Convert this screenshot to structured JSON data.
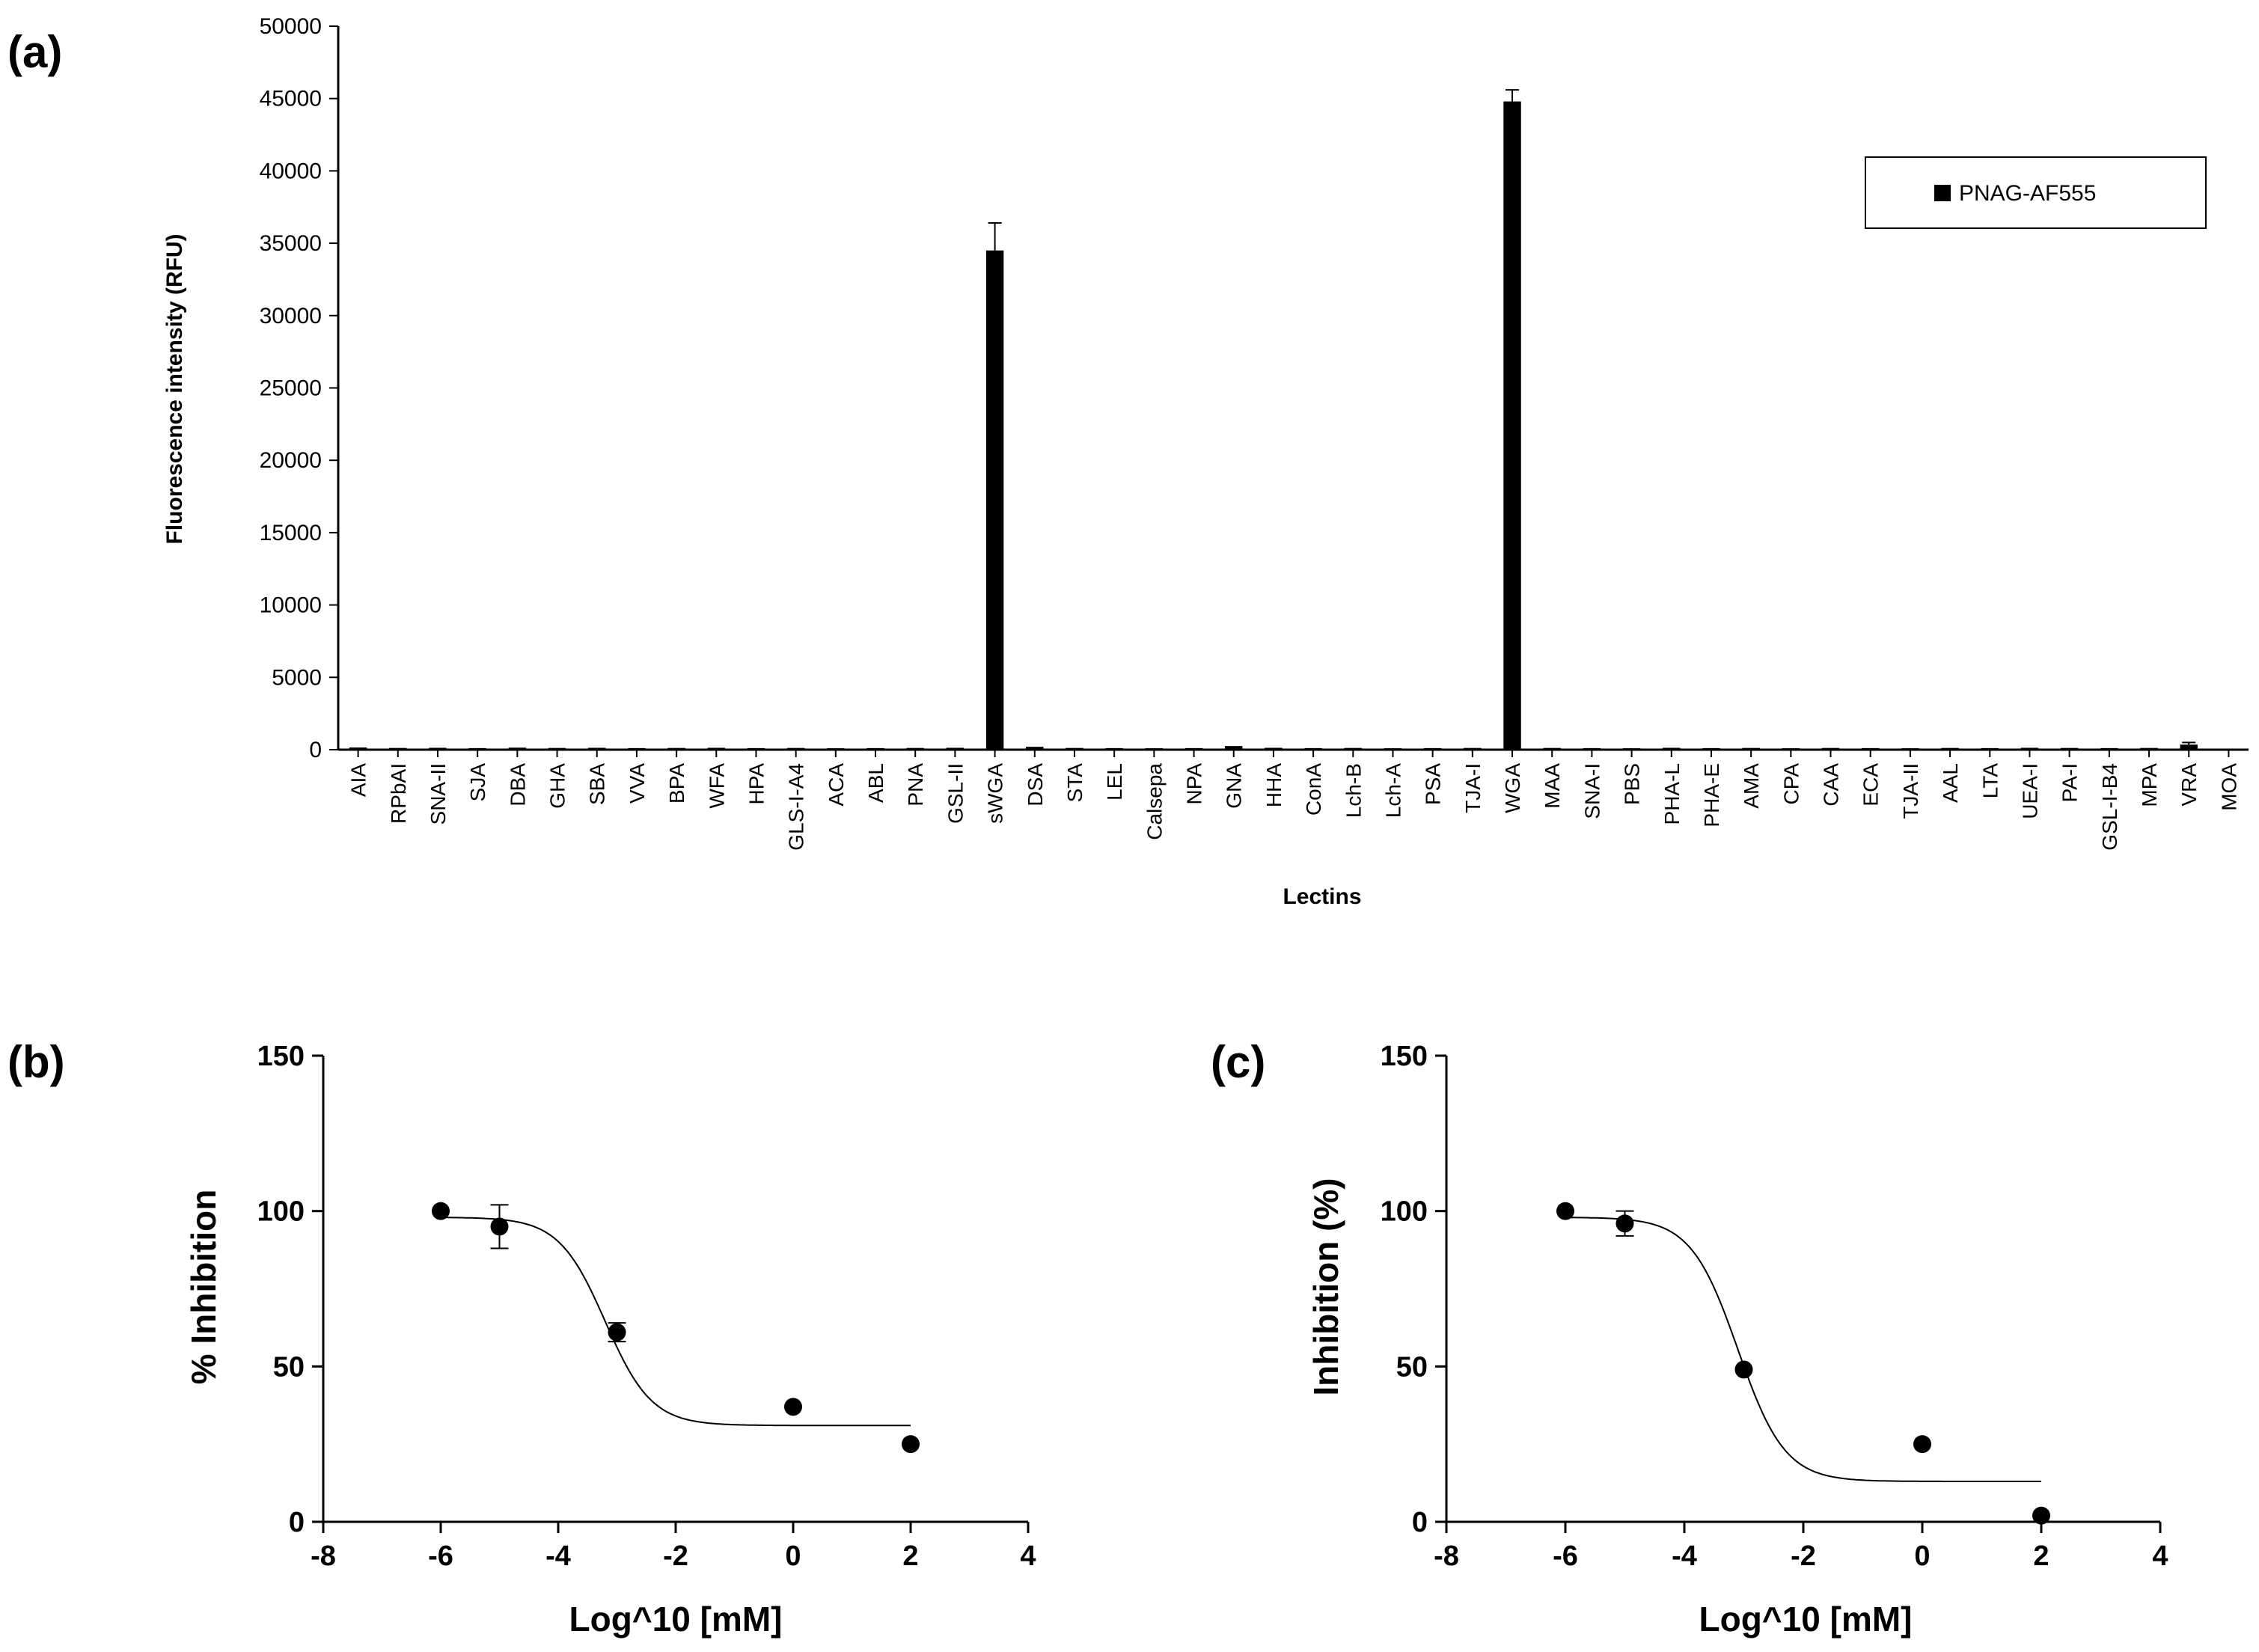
{
  "chart_data": [
    {
      "panel": "(a)",
      "type": "bar",
      "title": "",
      "xlabel": "Lectins",
      "ylabel": "Fluorescence intensity (RFU)",
      "ylim": [
        0,
        50000
      ],
      "yticks": [
        0,
        5000,
        10000,
        15000,
        20000,
        25000,
        30000,
        35000,
        40000,
        45000,
        50000
      ],
      "legend": {
        "position": "top-right",
        "entries": [
          "PNAG-AF555"
        ]
      },
      "categories": [
        "AIA",
        "RPbAI",
        "SNA-II",
        "SJA",
        "DBA",
        "GHA",
        "SBA",
        "VVA",
        "BPA",
        "WFA",
        "HPA",
        "GLS-I-A4",
        "ACA",
        "ABL",
        "PNA",
        "GSL-II",
        "sWGA",
        "DSA",
        "STA",
        "LEL",
        "Calsepa",
        "NPA",
        "GNA",
        "HHA",
        "ConA",
        "Lch-B",
        "Lch-A",
        "PSA",
        "TJA-I",
        "WGA",
        "MAA",
        "SNA-I",
        "PBS",
        "PHA-L",
        "PHA-E",
        "AMA",
        "CPA",
        "CAA",
        "ECA",
        "TJA-II",
        "AAL",
        "LTA",
        "UEA-I",
        "PA-I",
        "GSL-I-B4",
        "MPA",
        "VRA",
        "MOA"
      ],
      "series": [
        {
          "name": "PNAG-AF555",
          "color": "#000000",
          "values": [
            150,
            120,
            130,
            110,
            140,
            120,
            130,
            110,
            120,
            130,
            110,
            120,
            100,
            110,
            120,
            130,
            34500,
            200,
            120,
            110,
            100,
            110,
            250,
            130,
            110,
            120,
            100,
            110,
            120,
            44800,
            120,
            110,
            100,
            130,
            110,
            120,
            100,
            120,
            110,
            100,
            120,
            110,
            130,
            120,
            110,
            120,
            350,
            50
          ],
          "errors": [
            0,
            0,
            0,
            0,
            0,
            0,
            0,
            0,
            0,
            0,
            0,
            0,
            0,
            0,
            0,
            0,
            1900,
            0,
            0,
            0,
            0,
            0,
            0,
            0,
            0,
            0,
            0,
            0,
            0,
            800,
            0,
            0,
            0,
            0,
            0,
            0,
            0,
            0,
            0,
            0,
            0,
            0,
            0,
            0,
            0,
            0,
            150,
            0
          ]
        }
      ]
    },
    {
      "panel": "(b)",
      "type": "scatter",
      "xlabel": "Log^10 [mM]",
      "ylabel": "% Inhibition",
      "xlim": [
        -8,
        4
      ],
      "ylim": [
        0,
        150
      ],
      "xticks": [
        -8,
        -6,
        -4,
        -2,
        0,
        2,
        4
      ],
      "yticks": [
        0,
        50,
        100,
        150
      ],
      "points": [
        {
          "x": -6,
          "y": 100,
          "err": 0
        },
        {
          "x": -5,
          "y": 95,
          "err": 7
        },
        {
          "x": -3,
          "y": 61,
          "err": 3
        },
        {
          "x": 0,
          "y": 37,
          "err": 0
        },
        {
          "x": 2,
          "y": 25,
          "err": 0
        }
      ],
      "fit": {
        "model": "sigmoidal dose-response",
        "top": 98,
        "bottom": 31,
        "logIC50": -3.2,
        "hill": -1.1,
        "x_range": [
          -6,
          2
        ]
      }
    },
    {
      "panel": "(c)",
      "type": "scatter",
      "xlabel": "Log^10 [mM]",
      "ylabel": "Inhibition (%)",
      "xlim": [
        -8,
        4
      ],
      "ylim": [
        0,
        150
      ],
      "xticks": [
        -8,
        -6,
        -4,
        -2,
        0,
        2,
        4
      ],
      "yticks": [
        0,
        50,
        100,
        150
      ],
      "points": [
        {
          "x": -6,
          "y": 100,
          "err": 0
        },
        {
          "x": -5,
          "y": 96,
          "err": 4
        },
        {
          "x": -3,
          "y": 49,
          "err": 0
        },
        {
          "x": 0,
          "y": 25,
          "err": 0
        },
        {
          "x": 2,
          "y": 2,
          "err": 0
        }
      ],
      "fit": {
        "model": "sigmoidal dose-response",
        "top": 98,
        "bottom": 13,
        "logIC50": -3.1,
        "hill": -1.1,
        "x_range": [
          -6,
          2
        ]
      }
    }
  ]
}
